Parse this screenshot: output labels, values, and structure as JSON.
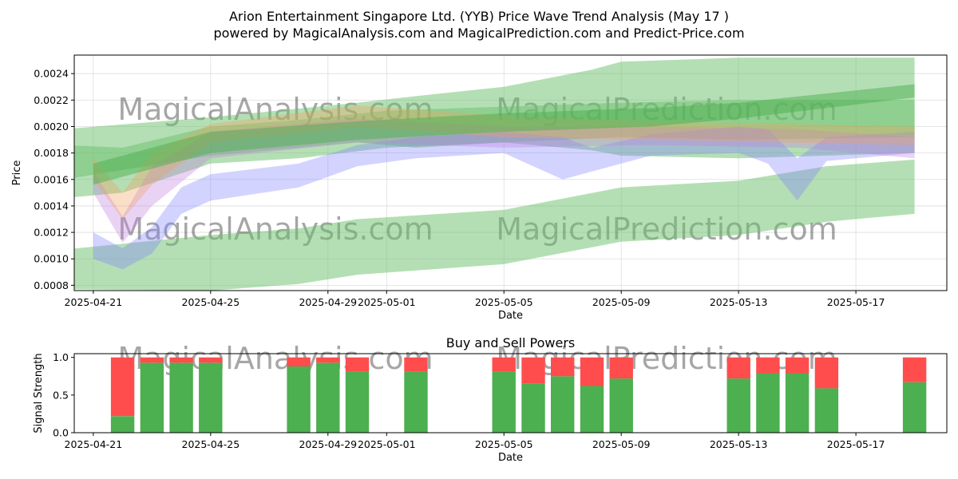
{
  "title_line1": "Arion Entertainment Singapore Ltd. (YYB) Price Wave Trend Analysis (May 17 )",
  "title_line2": "powered by MagicalAnalysis.com and MagicalPrediction.com and Predict-Price.com",
  "watermark": [
    "MagicalAnalysis.com",
    "MagicalPrediction.com"
  ],
  "colors": {
    "buy": "#4caf50",
    "sell": "#ff4d4d",
    "band_green": "#6abf69",
    "band_blue": "#8080ff",
    "band_purple": "#c080e0",
    "band_orange": "#f0a060"
  },
  "chart_data": [
    {
      "type": "area",
      "title": "",
      "xlabel": "Date",
      "ylabel": "Price",
      "xlim": [
        "2025-04-20",
        "2025-05-20"
      ],
      "ylim": [
        0.00076,
        0.00254
      ],
      "yticks": [
        "0.0008",
        "0.0010",
        "0.0012",
        "0.0014",
        "0.0016",
        "0.0018",
        "0.0020",
        "0.0022",
        "0.0024"
      ],
      "xticks": [
        "2025-04-21",
        "2025-04-25",
        "2025-04-29",
        "2025-05-01",
        "2025-05-05",
        "2025-05-09",
        "2025-05-13",
        "2025-05-17"
      ],
      "series": [
        {
          "name": "outer-green-band",
          "color": "#6abf69",
          "points": [
            [
              "2025-04-20",
              0.00077,
              0.00107
            ],
            [
              "2025-04-25",
              0.00076,
              0.00118
            ],
            [
              "2025-04-28",
              0.00081,
              0.00123
            ],
            [
              "2025-04-30",
              0.00088,
              0.0013
            ],
            [
              "2025-05-05",
              0.00096,
              0.00137
            ],
            [
              "2025-05-09",
              0.00113,
              0.00154
            ],
            [
              "2025-05-13",
              0.00118,
              0.00159
            ],
            [
              "2025-05-16",
              0.00128,
              0.0017
            ],
            [
              "2025-05-19",
              0.00134,
              0.00175
            ]
          ]
        },
        {
          "name": "upper-green-band",
          "color": "#6abf69",
          "points": [
            [
              "2025-04-20",
              0.0016,
              0.00198
            ],
            [
              "2025-04-25",
              0.00178,
              0.00207
            ],
            [
              "2025-04-30",
              0.00188,
              0.00218
            ],
            [
              "2025-05-02",
              0.00184,
              0.00223
            ],
            [
              "2025-05-05",
              0.00188,
              0.0023
            ],
            [
              "2025-05-08",
              0.00182,
              0.00243
            ],
            [
              "2025-05-09",
              0.00178,
              0.00249
            ],
            [
              "2025-05-13",
              0.00176,
              0.00252
            ],
            [
              "2025-05-19",
              0.0018,
              0.00252
            ]
          ]
        },
        {
          "name": "mid-green-band",
          "color": "#6abf69",
          "points": [
            [
              "2025-04-20",
              0.00146,
              0.00186
            ],
            [
              "2025-04-22",
              0.0015,
              0.00184
            ],
            [
              "2025-04-25",
              0.00172,
              0.002
            ],
            [
              "2025-04-28",
              0.00176,
              0.00205
            ],
            [
              "2025-05-01",
              0.00184,
              0.00212
            ],
            [
              "2025-05-05",
              0.00188,
              0.00215
            ],
            [
              "2025-05-09",
              0.00192,
              0.00218
            ],
            [
              "2025-05-13",
              0.0019,
              0.0022
            ],
            [
              "2025-05-19",
              0.00192,
              0.0022
            ]
          ]
        },
        {
          "name": "blue-wave",
          "color": "#8080ff",
          "points": [
            [
              "2025-04-21",
              0.001,
              0.0012
            ],
            [
              "2025-04-22",
              0.00092,
              0.00108
            ],
            [
              "2025-04-23",
              0.00104,
              0.00124
            ],
            [
              "2025-04-24",
              0.00134,
              0.00154
            ],
            [
              "2025-04-25",
              0.00144,
              0.00164
            ],
            [
              "2025-04-28",
              0.00154,
              0.00172
            ],
            [
              "2025-04-30",
              0.0017,
              0.00186
            ],
            [
              "2025-05-02",
              0.00176,
              0.00192
            ],
            [
              "2025-05-05",
              0.0018,
              0.00196
            ],
            [
              "2025-05-07",
              0.0016,
              0.00192
            ],
            [
              "2025-05-08",
              0.00166,
              0.00184
            ],
            [
              "2025-05-10",
              0.00178,
              0.00194
            ],
            [
              "2025-05-13",
              0.0018,
              0.002
            ],
            [
              "2025-05-14",
              0.00172,
              0.00198
            ],
            [
              "2025-05-15",
              0.00144,
              0.00176
            ],
            [
              "2025-05-16",
              0.00174,
              0.00192
            ],
            [
              "2025-05-19",
              0.0018,
              0.00196
            ]
          ]
        },
        {
          "name": "purple-wave",
          "color": "#c080e0",
          "points": [
            [
              "2025-04-21",
              0.0015,
              0.00166
            ],
            [
              "2025-04-22",
              0.00112,
              0.00132
            ],
            [
              "2025-04-23",
              0.0014,
              0.0017
            ],
            [
              "2025-04-25",
              0.00176,
              0.00196
            ],
            [
              "2025-04-30",
              0.00188,
              0.00206
            ],
            [
              "2025-05-05",
              0.00184,
              0.002
            ],
            [
              "2025-05-10",
              0.00186,
              0.002
            ],
            [
              "2025-05-15",
              0.00184,
              0.00198
            ],
            [
              "2025-05-19",
              0.00176,
              0.00192
            ]
          ]
        },
        {
          "name": "orange-wave",
          "color": "#f0a060",
          "points": [
            [
              "2025-04-21",
              0.0016,
              0.00176
            ],
            [
              "2025-04-22",
              0.0013,
              0.0015
            ],
            [
              "2025-04-23",
              0.00156,
              0.0018
            ],
            [
              "2025-04-25",
              0.00188,
              0.00202
            ],
            [
              "2025-04-30",
              0.002,
              0.00216
            ],
            [
              "2025-05-05",
              0.00192,
              0.00208
            ],
            [
              "2025-05-10",
              0.0019,
              0.00204
            ],
            [
              "2025-05-19",
              0.00186,
              0.002
            ]
          ]
        },
        {
          "name": "trend-line-green",
          "color": "#4caf50",
          "points": [
            [
              "2025-04-21",
              0.00156,
              0.00172
            ],
            [
              "2025-04-25",
              0.0018,
              0.00196
            ],
            [
              "2025-04-30",
              0.0019,
              0.00204
            ],
            [
              "2025-05-05",
              0.00196,
              0.0021
            ],
            [
              "2025-05-10",
              0.002,
              0.00214
            ],
            [
              "2025-05-13",
              0.00206,
              0.00218
            ],
            [
              "2025-05-19",
              0.00222,
              0.00232
            ]
          ]
        }
      ]
    },
    {
      "type": "bar",
      "title": "Buy and Sell Powers",
      "xlabel": "Date",
      "ylabel": "Signal Strength",
      "xlim": [
        "2025-04-20",
        "2025-05-20"
      ],
      "ylim": [
        0,
        1.05
      ],
      "yticks": [
        "0.0",
        "0.5",
        "1.0"
      ],
      "xticks": [
        "2025-04-21",
        "2025-04-25",
        "2025-04-29",
        "2025-05-01",
        "2025-05-05",
        "2025-05-09",
        "2025-05-13",
        "2025-05-17"
      ],
      "series": [
        {
          "name": "Buy",
          "color": "#4caf50",
          "dates": [
            "2025-04-22",
            "2025-04-23",
            "2025-04-24",
            "2025-04-25",
            "2025-04-28",
            "2025-04-29",
            "2025-04-30",
            "2025-05-02",
            "2025-05-05",
            "2025-05-06",
            "2025-05-07",
            "2025-05-08",
            "2025-05-09",
            "2025-05-13",
            "2025-05-14",
            "2025-05-15",
            "2025-05-16",
            "2025-05-19"
          ],
          "values": [
            0.22,
            0.93,
            0.93,
            0.93,
            0.88,
            0.93,
            0.81,
            0.81,
            0.81,
            0.65,
            0.75,
            0.62,
            0.72,
            0.72,
            0.79,
            0.79,
            0.59,
            0.67
          ]
        },
        {
          "name": "Sell",
          "color": "#ff4d4d",
          "dates": [
            "2025-04-22",
            "2025-04-23",
            "2025-04-24",
            "2025-04-25",
            "2025-04-28",
            "2025-04-29",
            "2025-04-30",
            "2025-05-02",
            "2025-05-05",
            "2025-05-06",
            "2025-05-07",
            "2025-05-08",
            "2025-05-09",
            "2025-05-13",
            "2025-05-14",
            "2025-05-15",
            "2025-05-16",
            "2025-05-19"
          ],
          "values": [
            0.78,
            0.07,
            0.07,
            0.07,
            0.12,
            0.07,
            0.19,
            0.19,
            0.19,
            0.35,
            0.25,
            0.38,
            0.28,
            0.28,
            0.21,
            0.21,
            0.41,
            0.33
          ]
        }
      ]
    }
  ]
}
